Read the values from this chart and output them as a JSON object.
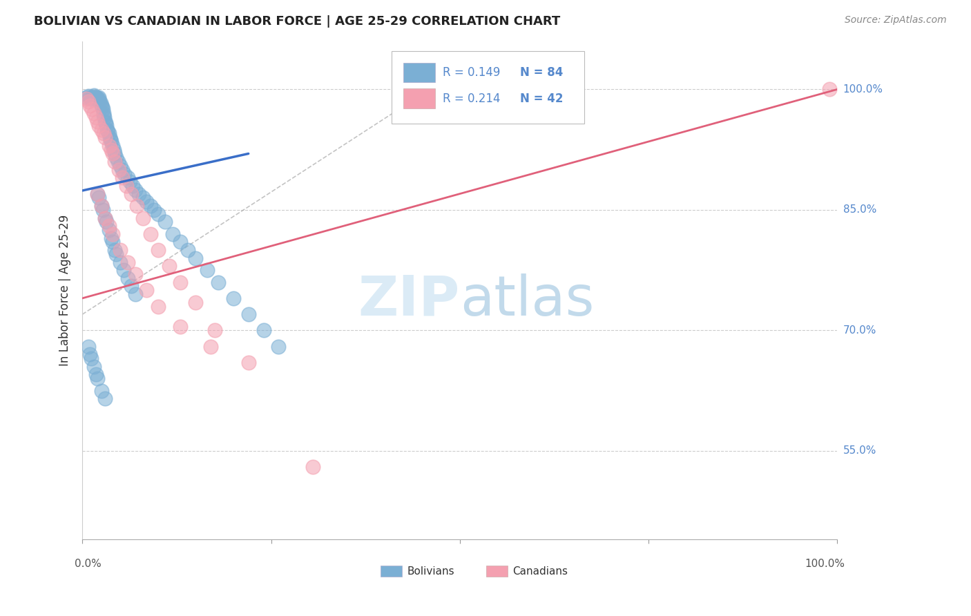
{
  "title": "BOLIVIAN VS CANADIAN IN LABOR FORCE | AGE 25-29 CORRELATION CHART",
  "source": "Source: ZipAtlas.com",
  "ylabel": "In Labor Force | Age 25-29",
  "legend_blue_text": "R = 0.149   N = 84",
  "legend_pink_text": "R = 0.214   N = 42",
  "legend_label_blue": "Bolivians",
  "legend_label_pink": "Canadians",
  "blue_color": "#7BAFD4",
  "pink_color": "#F4A0B0",
  "blue_line_color": "#3A6EC8",
  "pink_line_color": "#E0607A",
  "grey_dash_color": "#AAAAAA",
  "axis_tick_color": "#5588CC",
  "watermark_color": "#D5E8F5",
  "xlim": [
    0.0,
    1.0
  ],
  "ylim": [
    0.44,
    1.06
  ],
  "ytick_values": [
    0.55,
    0.7,
    0.85,
    1.0
  ],
  "ytick_labels": [
    "55.0%",
    "70.0%",
    "85.0%",
    "100.0%"
  ],
  "blue_scatter_x": [
    0.005,
    0.008,
    0.01,
    0.012,
    0.013,
    0.015,
    0.015,
    0.017,
    0.018,
    0.019,
    0.02,
    0.021,
    0.022,
    0.022,
    0.023,
    0.024,
    0.025,
    0.026,
    0.027,
    0.028,
    0.028,
    0.029,
    0.03,
    0.031,
    0.032,
    0.033,
    0.034,
    0.035,
    0.036,
    0.037,
    0.038,
    0.04,
    0.042,
    0.043,
    0.045,
    0.047,
    0.05,
    0.053,
    0.056,
    0.06,
    0.063,
    0.067,
    0.07,
    0.075,
    0.08,
    0.085,
    0.09,
    0.095,
    0.1,
    0.11,
    0.12,
    0.13,
    0.14,
    0.15,
    0.165,
    0.18,
    0.2,
    0.22,
    0.24,
    0.26,
    0.02,
    0.022,
    0.025,
    0.027,
    0.03,
    0.032,
    0.035,
    0.038,
    0.04,
    0.043,
    0.045,
    0.05,
    0.055,
    0.06,
    0.065,
    0.07,
    0.008,
    0.01,
    0.012,
    0.015,
    0.018,
    0.02,
    0.025,
    0.03
  ],
  "blue_scatter_y": [
    0.99,
    0.992,
    0.99,
    0.988,
    0.99,
    0.991,
    0.993,
    0.99,
    0.989,
    0.99,
    0.988,
    0.987,
    0.99,
    0.988,
    0.985,
    0.983,
    0.98,
    0.978,
    0.975,
    0.97,
    0.968,
    0.965,
    0.96,
    0.958,
    0.955,
    0.95,
    0.948,
    0.945,
    0.94,
    0.938,
    0.935,
    0.93,
    0.925,
    0.92,
    0.915,
    0.91,
    0.905,
    0.9,
    0.895,
    0.89,
    0.885,
    0.88,
    0.875,
    0.87,
    0.865,
    0.86,
    0.855,
    0.85,
    0.845,
    0.835,
    0.82,
    0.81,
    0.8,
    0.79,
    0.775,
    0.76,
    0.74,
    0.72,
    0.7,
    0.68,
    0.87,
    0.865,
    0.855,
    0.85,
    0.84,
    0.835,
    0.825,
    0.815,
    0.81,
    0.8,
    0.795,
    0.785,
    0.775,
    0.765,
    0.755,
    0.745,
    0.68,
    0.67,
    0.665,
    0.655,
    0.645,
    0.64,
    0.625,
    0.615
  ],
  "pink_scatter_x": [
    0.005,
    0.008,
    0.01,
    0.013,
    0.015,
    0.018,
    0.02,
    0.022,
    0.025,
    0.028,
    0.03,
    0.035,
    0.038,
    0.04,
    0.043,
    0.048,
    0.053,
    0.058,
    0.065,
    0.072,
    0.08,
    0.09,
    0.1,
    0.115,
    0.13,
    0.15,
    0.175,
    0.02,
    0.025,
    0.03,
    0.035,
    0.04,
    0.05,
    0.06,
    0.07,
    0.085,
    0.1,
    0.13,
    0.17,
    0.22,
    0.305,
    0.99
  ],
  "pink_scatter_y": [
    0.988,
    0.985,
    0.98,
    0.975,
    0.97,
    0.965,
    0.96,
    0.955,
    0.95,
    0.945,
    0.94,
    0.93,
    0.925,
    0.92,
    0.91,
    0.9,
    0.89,
    0.88,
    0.87,
    0.855,
    0.84,
    0.82,
    0.8,
    0.78,
    0.76,
    0.735,
    0.7,
    0.87,
    0.855,
    0.84,
    0.83,
    0.82,
    0.8,
    0.785,
    0.77,
    0.75,
    0.73,
    0.705,
    0.68,
    0.66,
    0.53,
    1.0
  ],
  "blue_line_x0": 0.0,
  "blue_line_x1": 0.22,
  "blue_line_y0": 0.874,
  "blue_line_y1": 0.92,
  "pink_line_x0": 0.0,
  "pink_line_x1": 1.0,
  "pink_line_y0": 0.74,
  "pink_line_y1": 1.0,
  "grey_line_x0": 0.0,
  "grey_line_x1": 0.46,
  "grey_line_y0": 0.72,
  "grey_line_y1": 1.0
}
